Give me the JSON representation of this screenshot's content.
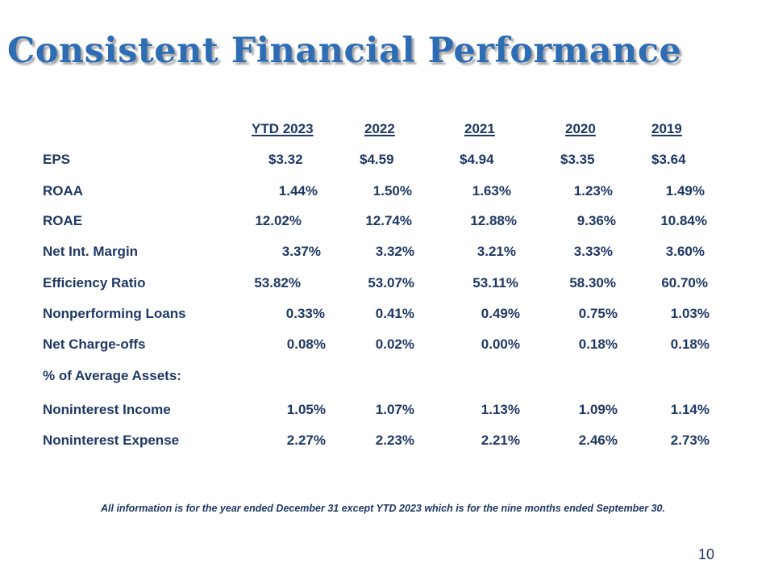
{
  "slide": {
    "title": "Consistent Financial Performance",
    "footnote": "All information is for the year ended December 31 except YTD 2023 which is for the nine months ended September 30.",
    "page_number": "10"
  },
  "table": {
    "columns": [
      "YTD 2023",
      "2022",
      "2021",
      "2020",
      "2019"
    ],
    "rows": [
      {
        "label": "EPS",
        "values": [
          "$3.32",
          "$4.59",
          "$4.94",
          "$3.35",
          "$3.64"
        ]
      },
      {
        "label": "ROAA",
        "values": [
          "1.44%",
          "1.50%",
          "1.63%",
          "1.23%",
          "1.49%"
        ]
      },
      {
        "label": "ROAE",
        "values": [
          "12.02%",
          "12.74%",
          "12.88%",
          "9.36%",
          "10.84%"
        ]
      },
      {
        "label": "Net Int. Margin",
        "values": [
          "3.37%",
          "3.32%",
          "3.21%",
          "3.33%",
          "3.60%"
        ]
      },
      {
        "label": "Efficiency Ratio",
        "values": [
          "53.82%",
          "53.07%",
          "53.11%",
          "58.30%",
          "60.70%"
        ]
      },
      {
        "label": "Nonperforming Loans",
        "values": [
          "0.33%",
          "0.41%",
          "0.49%",
          "0.75%",
          "1.03%"
        ]
      },
      {
        "label": "Net Charge-offs",
        "values": [
          "0.08%",
          "0.02%",
          "0.00%",
          "0.18%",
          "0.18%"
        ]
      },
      {
        "label": "% of Average Assets:",
        "values": [
          "",
          "",
          "",
          "",
          ""
        ]
      },
      {
        "label": "Noninterest Income",
        "values": [
          "1.05%",
          "1.07%",
          "1.13%",
          "1.09%",
          "1.14%"
        ]
      },
      {
        "label": "Noninterest Expense",
        "values": [
          "2.27%",
          "2.23%",
          "2.21%",
          "2.46%",
          "2.73%"
        ]
      }
    ]
  }
}
